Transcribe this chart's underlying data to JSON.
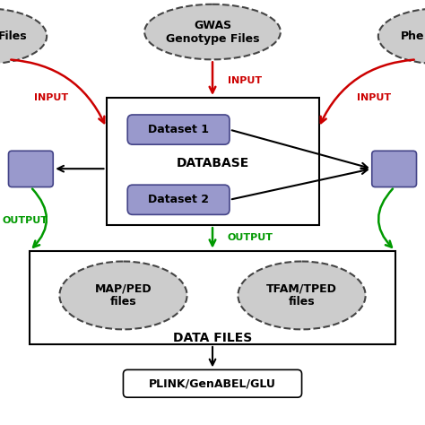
{
  "bg_color": "#ffffff",
  "ellipse_fill": "#cccccc",
  "ellipse_edge": "#444444",
  "rect_db_fill": "#ffffff",
  "rect_db_edge": "#000000",
  "rect_dataset_fill": "#9999cc",
  "rect_dataset_edge": "#444488",
  "rect_side_fill": "#9999cc",
  "rect_side_edge": "#444488",
  "rect_datafiles_fill": "#ffffff",
  "rect_datafiles_edge": "#000000",
  "rect_plink_fill": "#ffffff",
  "rect_plink_edge": "#000000",
  "red": "#cc0000",
  "green": "#009900",
  "black": "#000000",
  "gwas_label": "GWAS\nGenotype Files",
  "files_label": "Files",
  "phe_label": "Phe",
  "dataset1_label": "Dataset 1",
  "dataset2_label": "Dataset 2",
  "db_label": "DATABASE",
  "map_label": "MAP/PED\nfiles",
  "tfam_label": "TFAM/TPED\nfiles",
  "datafiles_label": "DATA FILES",
  "plink_label": "PLINK/GenABEL/GLU",
  "input_label": "INPUT",
  "output_label": "OUTPUT"
}
